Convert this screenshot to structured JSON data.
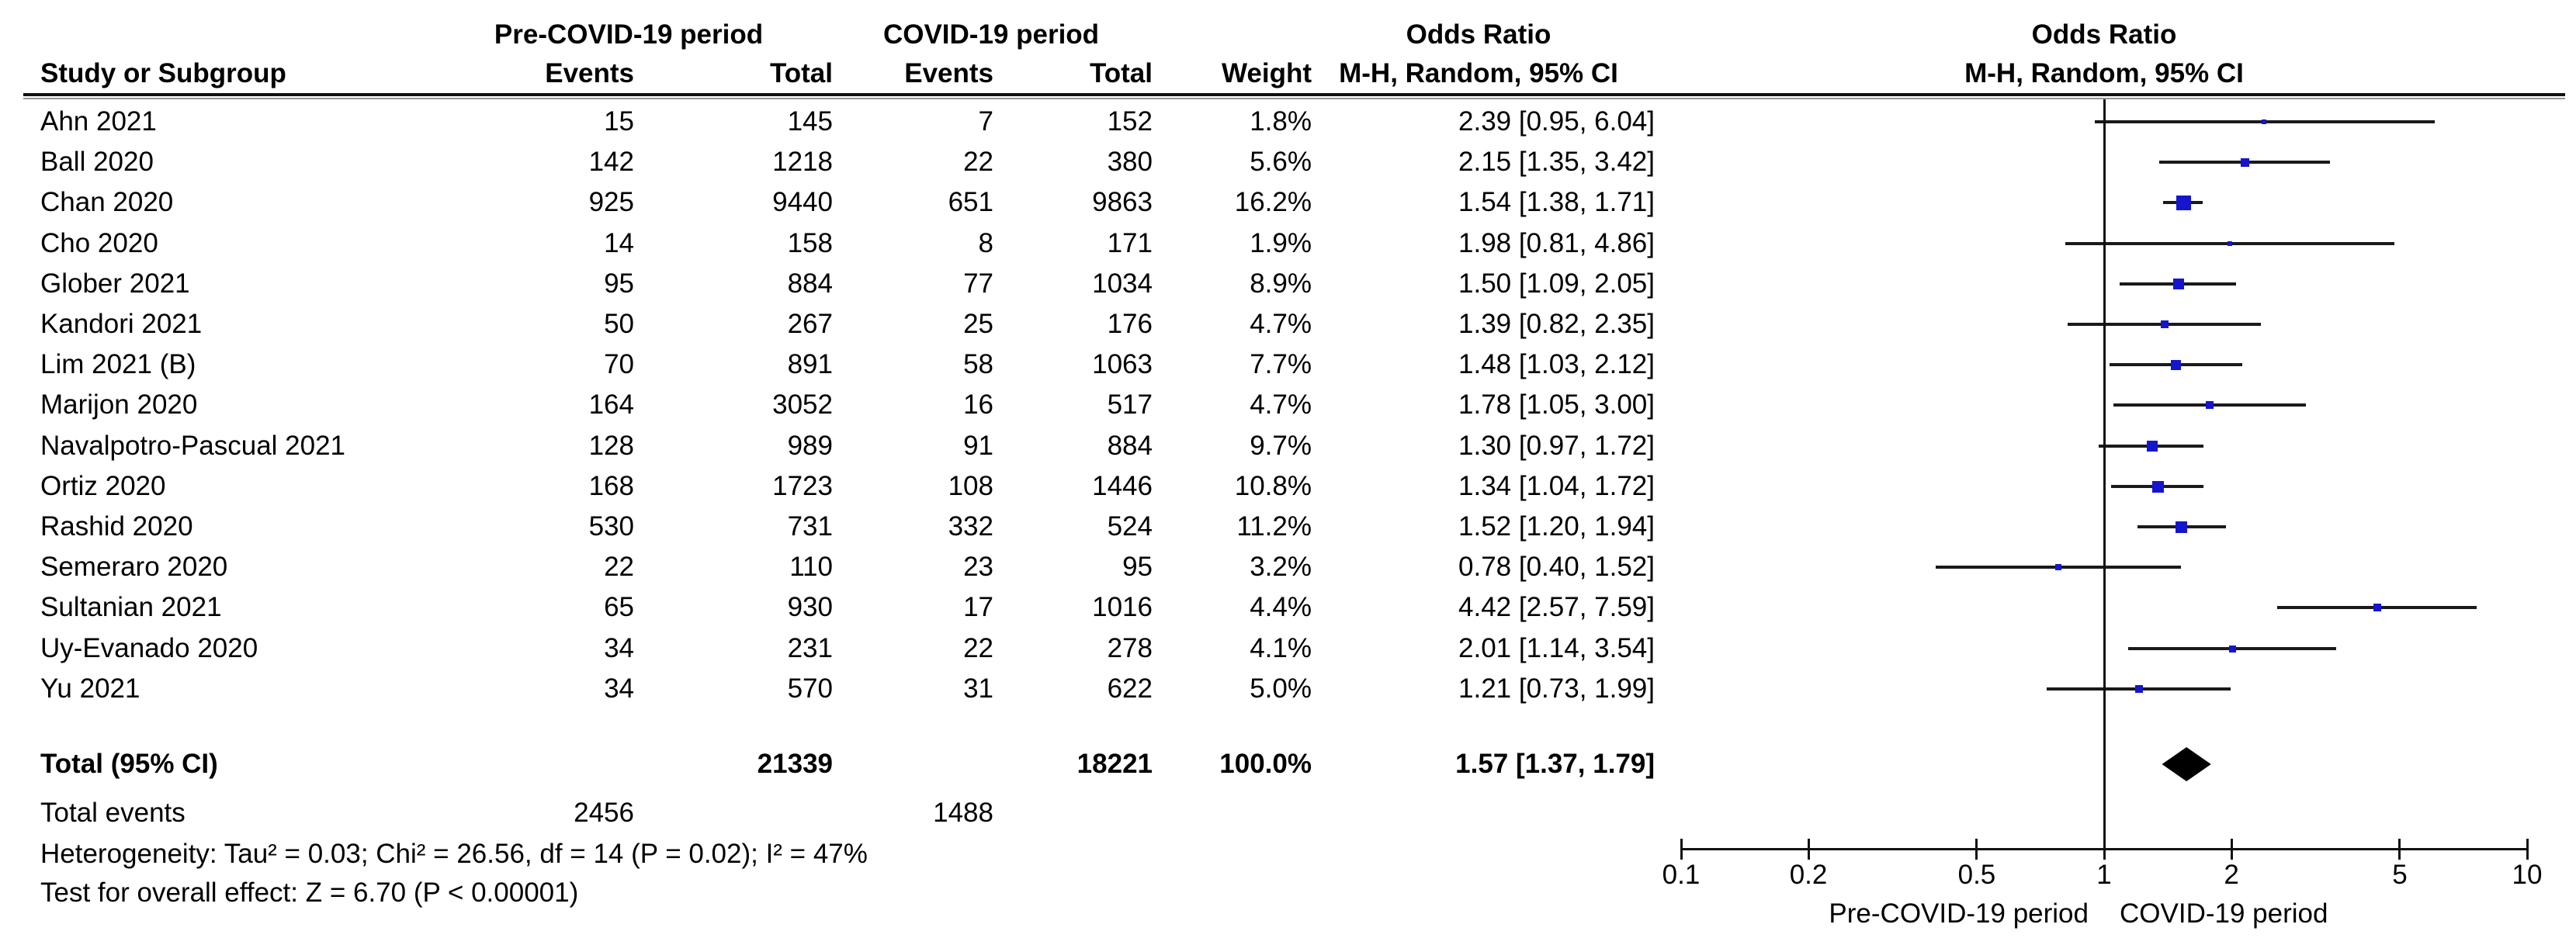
{
  "header": {
    "group_pre": "Pre-COVID-19 period",
    "group_covid": "COVID-19 period",
    "study": "Study or Subgroup",
    "events": "Events",
    "total": "Total",
    "weight": "Weight",
    "or_title": "Odds Ratio",
    "or_method": "M-H, Random, 95% CI"
  },
  "colors": {
    "marker_blue": "#1515cd",
    "ci_line": "#1a1a1a",
    "diamond": "#000000",
    "rule_gray": "#949494"
  },
  "chart_data": {
    "type": "forest",
    "effect_measure": "Odds Ratio",
    "method": "M-H, Random, 95% CI",
    "x_axis": {
      "scale": "log",
      "range": [
        0.1,
        10
      ],
      "ticks": [
        "0.1",
        "0.2",
        "0.5",
        "1",
        "2",
        "5",
        "10"
      ],
      "left_label": "Pre-COVID-19 period",
      "right_label": "COVID-19 period"
    },
    "studies": [
      {
        "name": "Ahn 2021",
        "pre_events": "15",
        "pre_total": "145",
        "covid_events": "7",
        "covid_total": "152",
        "weight": "1.8%",
        "weight_value": 1.8,
        "or": 2.39,
        "ci_low": 0.95,
        "ci_high": 6.04,
        "or_ci": "2.39 [0.95, 6.04]"
      },
      {
        "name": "Ball 2020",
        "pre_events": "142",
        "pre_total": "1218",
        "covid_events": "22",
        "covid_total": "380",
        "weight": "5.6%",
        "weight_value": 5.6,
        "or": 2.15,
        "ci_low": 1.35,
        "ci_high": 3.42,
        "or_ci": "2.15 [1.35, 3.42]"
      },
      {
        "name": "Chan 2020",
        "pre_events": "925",
        "pre_total": "9440",
        "covid_events": "651",
        "covid_total": "9863",
        "weight": "16.2%",
        "weight_value": 16.2,
        "or": 1.54,
        "ci_low": 1.38,
        "ci_high": 1.71,
        "or_ci": "1.54 [1.38, 1.71]"
      },
      {
        "name": "Cho 2020",
        "pre_events": "14",
        "pre_total": "158",
        "covid_events": "8",
        "covid_total": "171",
        "weight": "1.9%",
        "weight_value": 1.9,
        "or": 1.98,
        "ci_low": 0.81,
        "ci_high": 4.86,
        "or_ci": "1.98 [0.81, 4.86]"
      },
      {
        "name": "Glober 2021",
        "pre_events": "95",
        "pre_total": "884",
        "covid_events": "77",
        "covid_total": "1034",
        "weight": "8.9%",
        "weight_value": 8.9,
        "or": 1.5,
        "ci_low": 1.09,
        "ci_high": 2.05,
        "or_ci": "1.50 [1.09, 2.05]"
      },
      {
        "name": "Kandori 2021",
        "pre_events": "50",
        "pre_total": "267",
        "covid_events": "25",
        "covid_total": "176",
        "weight": "4.7%",
        "weight_value": 4.7,
        "or": 1.39,
        "ci_low": 0.82,
        "ci_high": 2.35,
        "or_ci": "1.39 [0.82, 2.35]"
      },
      {
        "name": "Lim 2021 (B)",
        "pre_events": "70",
        "pre_total": "891",
        "covid_events": "58",
        "covid_total": "1063",
        "weight": "7.7%",
        "weight_value": 7.7,
        "or": 1.48,
        "ci_low": 1.03,
        "ci_high": 2.12,
        "or_ci": "1.48 [1.03, 2.12]"
      },
      {
        "name": "Marijon 2020",
        "pre_events": "164",
        "pre_total": "3052",
        "covid_events": "16",
        "covid_total": "517",
        "weight": "4.7%",
        "weight_value": 4.7,
        "or": 1.78,
        "ci_low": 1.05,
        "ci_high": 3.0,
        "or_ci": "1.78 [1.05, 3.00]"
      },
      {
        "name": "Navalpotro-Pascual 2021",
        "pre_events": "128",
        "pre_total": "989",
        "covid_events": "91",
        "covid_total": "884",
        "weight": "9.7%",
        "weight_value": 9.7,
        "or": 1.3,
        "ci_low": 0.97,
        "ci_high": 1.72,
        "or_ci": "1.30 [0.97, 1.72]"
      },
      {
        "name": "Ortiz 2020",
        "pre_events": "168",
        "pre_total": "1723",
        "covid_events": "108",
        "covid_total": "1446",
        "weight": "10.8%",
        "weight_value": 10.8,
        "or": 1.34,
        "ci_low": 1.04,
        "ci_high": 1.72,
        "or_ci": "1.34 [1.04, 1.72]"
      },
      {
        "name": "Rashid 2020",
        "pre_events": "530",
        "pre_total": "731",
        "covid_events": "332",
        "covid_total": "524",
        "weight": "11.2%",
        "weight_value": 11.2,
        "or": 1.52,
        "ci_low": 1.2,
        "ci_high": 1.94,
        "or_ci": "1.52 [1.20, 1.94]"
      },
      {
        "name": "Semeraro 2020",
        "pre_events": "22",
        "pre_total": "110",
        "covid_events": "23",
        "covid_total": "95",
        "weight": "3.2%",
        "weight_value": 3.2,
        "or": 0.78,
        "ci_low": 0.4,
        "ci_high": 1.52,
        "or_ci": "0.78 [0.40, 1.52]"
      },
      {
        "name": "Sultanian 2021",
        "pre_events": "65",
        "pre_total": "930",
        "covid_events": "17",
        "covid_total": "1016",
        "weight": "4.4%",
        "weight_value": 4.4,
        "or": 4.42,
        "ci_low": 2.57,
        "ci_high": 7.59,
        "or_ci": "4.42 [2.57, 7.59]"
      },
      {
        "name": "Uy-Evanado 2020",
        "pre_events": "34",
        "pre_total": "231",
        "covid_events": "22",
        "covid_total": "278",
        "weight": "4.1%",
        "weight_value": 4.1,
        "or": 2.01,
        "ci_low": 1.14,
        "ci_high": 3.54,
        "or_ci": "2.01 [1.14, 3.54]"
      },
      {
        "name": "Yu 2021",
        "pre_events": "34",
        "pre_total": "570",
        "covid_events": "31",
        "covid_total": "622",
        "weight": "5.0%",
        "weight_value": 5.0,
        "or": 1.21,
        "ci_low": 0.73,
        "ci_high": 1.99,
        "or_ci": "1.21 [0.73, 1.99]"
      }
    ],
    "total": {
      "label": "Total (95% CI)",
      "pre_total": "21339",
      "covid_total": "18221",
      "weight": "100.0%",
      "or": 1.57,
      "ci_low": 1.37,
      "ci_high": 1.79,
      "or_ci": "1.57 [1.37, 1.79]"
    },
    "total_events": {
      "label": "Total events",
      "pre": "2456",
      "covid": "1488"
    },
    "heterogeneity": "Heterogeneity: Tau² = 0.03; Chi² = 26.56, df = 14 (P = 0.02); I² = 47%",
    "overall_effect": "Test for overall effect: Z = 6.70 (P < 0.00001)"
  }
}
